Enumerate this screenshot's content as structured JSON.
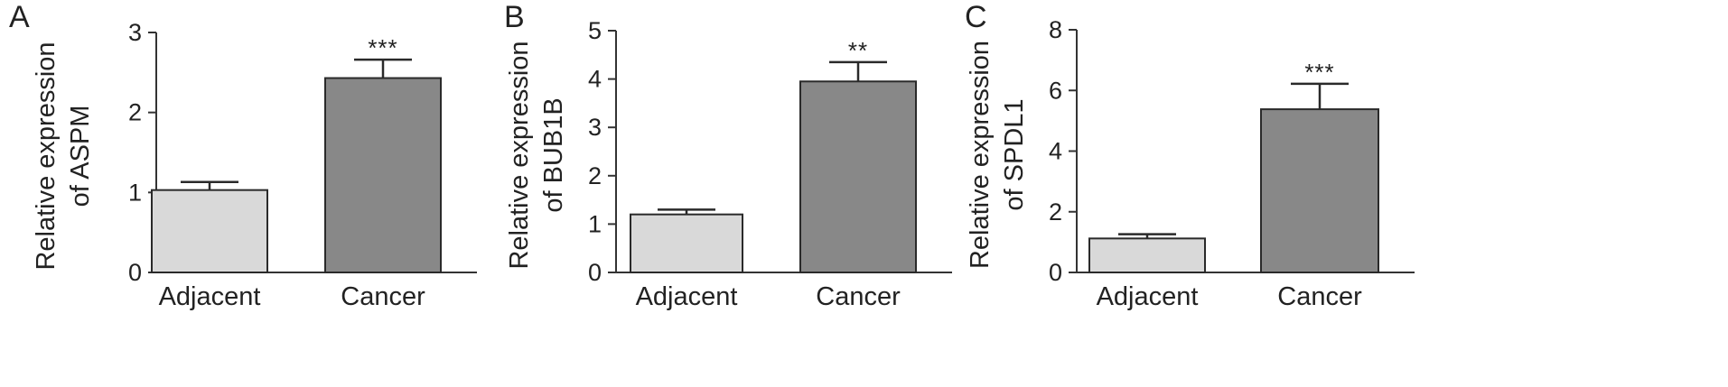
{
  "chart_data": [
    {
      "type": "bar",
      "panel_label": "A",
      "categories": [
        "Adjacent",
        "Cancer"
      ],
      "values": [
        1.03,
        2.43
      ],
      "errors": [
        0.1,
        0.23
      ],
      "significance": [
        "",
        "***"
      ],
      "colors": [
        "#d9d9d9",
        "#888888"
      ],
      "ylabel": [
        "Relative expression",
        "of ASPM"
      ],
      "ylim": [
        0,
        3
      ],
      "yticks": [
        0,
        1,
        2,
        3
      ],
      "grid": false
    },
    {
      "type": "bar",
      "panel_label": "B",
      "categories": [
        "Adjacent",
        "Cancer"
      ],
      "values": [
        1.2,
        3.95
      ],
      "errors": [
        0.1,
        0.4
      ],
      "significance": [
        "",
        "**"
      ],
      "colors": [
        "#d9d9d9",
        "#888888"
      ],
      "ylabel": [
        "Relative expression",
        "of BUB1B"
      ],
      "ylim": [
        0,
        5
      ],
      "yticks": [
        0,
        1,
        2,
        3,
        4,
        5
      ],
      "grid": false
    },
    {
      "type": "bar",
      "panel_label": "C",
      "categories": [
        "Adjacent",
        "Cancer"
      ],
      "values": [
        1.12,
        5.38
      ],
      "errors": [
        0.14,
        0.84
      ],
      "significance": [
        "",
        "***"
      ],
      "colors": [
        "#d9d9d9",
        "#888888"
      ],
      "ylabel": [
        "Relative expression",
        "of SPDL1"
      ],
      "ylim": [
        0,
        8
      ],
      "yticks": [
        0,
        2,
        4,
        6,
        8
      ],
      "grid": false
    }
  ]
}
